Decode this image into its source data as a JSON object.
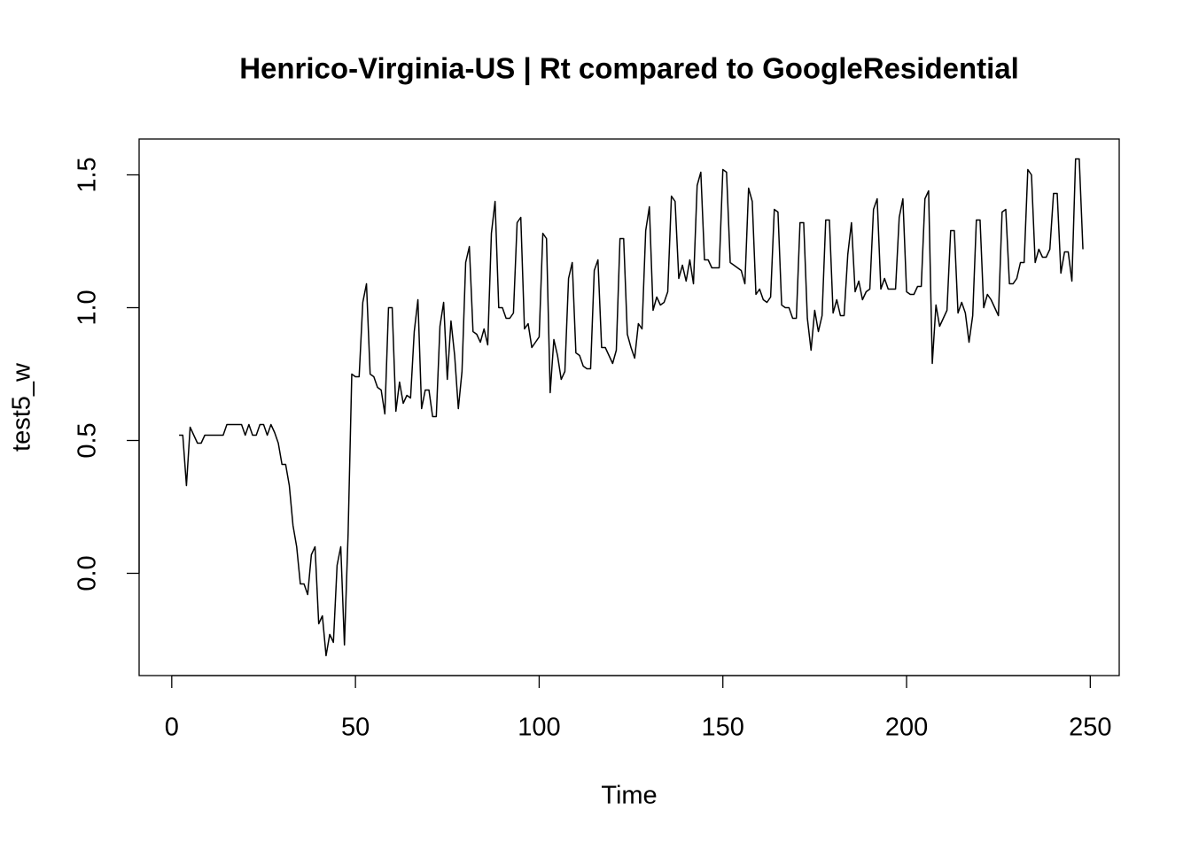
{
  "chart_data": {
    "type": "line",
    "title": "Henrico-Virginia-US | Rt compared to GoogleResidential",
    "x_label": "Time",
    "y_label": "test5_w",
    "color": "#000000",
    "x": [
      1,
      2,
      3,
      4,
      5,
      6,
      7,
      8,
      9,
      10,
      11,
      12,
      13,
      14,
      15,
      16,
      17,
      18,
      19,
      20,
      21,
      22,
      23,
      24,
      25,
      26,
      27,
      28,
      29,
      30,
      31,
      32,
      33,
      34,
      35,
      36,
      37,
      38,
      39,
      40,
      41,
      42,
      43,
      44,
      45,
      46,
      47,
      48,
      49,
      50,
      51,
      52,
      53,
      54,
      55,
      56,
      57,
      58,
      59,
      60,
      61,
      62,
      63,
      64,
      65,
      66,
      67,
      68,
      69,
      70,
      71,
      72,
      73,
      74,
      75,
      76,
      77,
      78,
      79,
      80,
      81,
      82,
      83,
      84,
      85,
      86,
      87,
      88,
      89,
      90,
      91,
      92,
      93,
      94,
      95,
      96,
      97,
      98,
      99,
      100,
      101,
      102,
      103,
      104,
      105,
      106,
      107,
      108,
      109,
      110,
      111,
      112,
      113,
      114,
      115,
      116,
      117,
      118,
      119,
      120,
      121,
      122,
      123,
      124,
      125,
      126,
      127,
      128,
      129,
      130,
      131,
      132,
      133,
      134,
      135,
      136,
      137,
      138,
      139,
      140,
      141,
      142,
      143,
      144,
      145,
      146,
      147,
      148,
      149,
      150,
      151,
      152,
      153,
      154,
      155,
      156,
      157,
      158,
      159,
      160,
      161,
      162,
      163,
      164,
      165,
      166,
      167,
      168,
      169,
      170,
      171,
      172,
      173,
      174,
      175,
      176,
      177,
      178,
      179,
      180,
      181,
      182,
      183,
      184,
      185,
      186,
      187,
      188,
      189,
      190,
      191,
      192,
      193,
      194,
      195,
      196,
      197,
      198,
      199,
      200,
      201,
      202,
      203,
      204,
      205,
      206,
      207,
      208,
      209,
      210,
      211,
      212,
      213,
      214,
      215,
      216,
      217,
      218,
      219,
      220,
      221,
      222,
      223,
      224,
      225,
      226,
      227,
      228,
      229,
      230,
      231,
      232,
      233,
      234,
      235,
      236,
      237,
      238,
      239,
      240,
      241,
      242,
      243,
      244,
      245,
      246,
      247,
      248
    ],
    "values": [
      null,
      0.52,
      0.52,
      0.33,
      0.55,
      0.52,
      0.49,
      0.49,
      0.52,
      0.52,
      0.52,
      0.52,
      0.52,
      0.52,
      0.56,
      0.56,
      0.56,
      0.56,
      0.56,
      0.52,
      0.56,
      0.52,
      0.52,
      0.56,
      0.56,
      0.52,
      0.56,
      0.53,
      0.49,
      0.41,
      0.41,
      0.33,
      0.18,
      0.1,
      -0.04,
      -0.04,
      -0.08,
      0.07,
      0.1,
      -0.19,
      -0.16,
      -0.31,
      -0.23,
      -0.26,
      0.03,
      0.1,
      -0.27,
      0.15,
      0.75,
      0.74,
      0.74,
      1.02,
      1.09,
      0.75,
      0.74,
      0.7,
      0.69,
      0.6,
      1.0,
      1.0,
      0.61,
      0.72,
      0.64,
      0.67,
      0.66,
      0.91,
      1.03,
      0.62,
      0.69,
      0.69,
      0.59,
      0.59,
      0.93,
      1.02,
      0.73,
      0.95,
      0.82,
      0.62,
      0.76,
      1.17,
      1.23,
      0.91,
      0.9,
      0.87,
      0.92,
      0.86,
      1.28,
      1.4,
      1.0,
      1.0,
      0.96,
      0.96,
      0.98,
      1.32,
      1.34,
      0.92,
      0.94,
      0.85,
      0.87,
      0.89,
      1.28,
      1.26,
      0.68,
      0.88,
      0.82,
      0.73,
      0.76,
      1.11,
      1.17,
      0.83,
      0.82,
      0.78,
      0.77,
      0.77,
      1.14,
      1.18,
      0.85,
      0.85,
      0.82,
      0.79,
      0.84,
      1.26,
      1.26,
      0.9,
      0.85,
      0.81,
      0.94,
      0.92,
      1.29,
      1.38,
      0.99,
      1.04,
      1.01,
      1.02,
      1.06,
      1.42,
      1.4,
      1.11,
      1.16,
      1.1,
      1.18,
      1.09,
      1.46,
      1.51,
      1.18,
      1.18,
      1.15,
      1.15,
      1.15,
      1.52,
      1.51,
      1.17,
      1.16,
      1.15,
      1.14,
      1.09,
      1.45,
      1.4,
      1.05,
      1.07,
      1.03,
      1.02,
      1.04,
      1.37,
      1.36,
      1.01,
      1.0,
      1.0,
      0.96,
      0.96,
      1.32,
      1.32,
      0.96,
      0.84,
      0.99,
      0.91,
      0.97,
      1.33,
      1.33,
      0.98,
      1.03,
      0.97,
      0.97,
      1.2,
      1.32,
      1.06,
      1.1,
      1.03,
      1.06,
      1.07,
      1.37,
      1.41,
      1.07,
      1.11,
      1.07,
      1.07,
      1.07,
      1.34,
      1.41,
      1.06,
      1.05,
      1.05,
      1.08,
      1.08,
      1.41,
      1.44,
      0.79,
      1.01,
      0.93,
      0.96,
      0.99,
      1.29,
      1.29,
      0.98,
      1.02,
      0.98,
      0.87,
      0.97,
      1.33,
      1.33,
      1.0,
      1.05,
      1.03,
      1.0,
      0.97,
      1.36,
      1.37,
      1.09,
      1.09,
      1.11,
      1.17,
      1.17,
      1.52,
      1.5,
      1.17,
      1.22,
      1.19,
      1.19,
      1.22,
      1.43,
      1.43,
      1.13,
      1.21,
      1.21,
      1.1,
      1.56,
      1.56,
      1.22
    ],
    "xlim": [
      -8.88,
      257.88
    ],
    "ylim": [
      -0.385,
      1.635
    ],
    "xticks": [
      0,
      50,
      100,
      150,
      200,
      250
    ],
    "yticks": [
      {
        "value": 0,
        "label": "0.0"
      },
      0.5,
      {
        "value": 1,
        "label": "1.0"
      },
      1.5
    ]
  }
}
